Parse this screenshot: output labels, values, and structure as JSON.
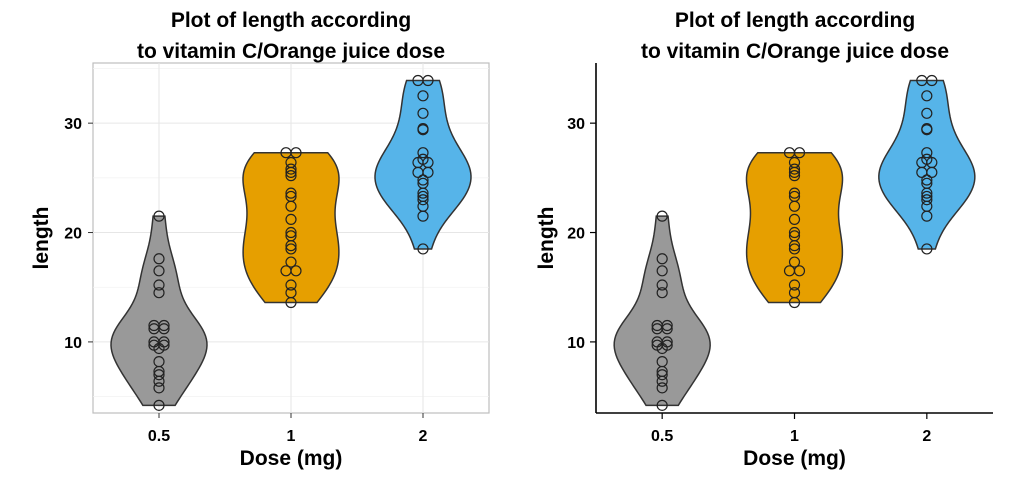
{
  "chart_data": [
    {
      "type": "violin",
      "title": "Plot of length according to vitamin C/Orange juice dose",
      "title_lines": [
        "Plot of length according",
        "to vitamin C/Orange juice dose"
      ],
      "xlabel": "Dose (mg)",
      "ylabel": "length",
      "categories": [
        "0.5",
        "1",
        "2"
      ],
      "ylim": [
        3.5,
        35.5
      ],
      "yticks": [
        10,
        20,
        30
      ],
      "grid": true,
      "panel_style": "grey-border",
      "series": [
        {
          "name": "0.5",
          "color": "#999999",
          "values": [
            4.2,
            5.8,
            6.4,
            7.0,
            7.3,
            8.2,
            9.4,
            9.7,
            9.7,
            10.0,
            10.0,
            11.2,
            11.2,
            11.5,
            11.5,
            14.5,
            15.2,
            16.5,
            17.6,
            21.5
          ],
          "min": 4.2,
          "max": 21.5
        },
        {
          "name": "1",
          "color": "#E69F00",
          "values": [
            13.6,
            14.5,
            15.2,
            16.5,
            16.5,
            17.3,
            18.5,
            18.8,
            19.7,
            20.0,
            21.2,
            22.4,
            23.3,
            23.6,
            25.2,
            25.5,
            25.8,
            26.4,
            27.3,
            27.3
          ],
          "min": 13.6,
          "max": 27.3
        },
        {
          "name": "2",
          "color": "#56B4E9",
          "values": [
            18.5,
            21.5,
            22.4,
            23.0,
            23.3,
            23.6,
            24.5,
            24.8,
            25.5,
            25.5,
            26.4,
            26.4,
            26.7,
            27.3,
            29.4,
            29.5,
            30.9,
            32.5,
            33.9,
            33.9
          ],
          "min": 18.5,
          "max": 33.9
        }
      ]
    },
    {
      "type": "violin",
      "title": "Plot of length according to vitamin C/Orange juice dose",
      "title_lines": [
        "Plot of length according",
        "to vitamin C/Orange juice dose"
      ],
      "xlabel": "Dose (mg)",
      "ylabel": "length",
      "categories": [
        "0.5",
        "1",
        "2"
      ],
      "ylim": [
        3.5,
        35.5
      ],
      "yticks": [
        10,
        20,
        30
      ],
      "grid": false,
      "panel_style": "classic-axes",
      "series": [
        {
          "name": "0.5",
          "color": "#999999",
          "values": [
            4.2,
            5.8,
            6.4,
            7.0,
            7.3,
            8.2,
            9.4,
            9.7,
            9.7,
            10.0,
            10.0,
            11.2,
            11.2,
            11.5,
            11.5,
            14.5,
            15.2,
            16.5,
            17.6,
            21.5
          ],
          "min": 4.2,
          "max": 21.5
        },
        {
          "name": "1",
          "color": "#E69F00",
          "values": [
            13.6,
            14.5,
            15.2,
            16.5,
            16.5,
            17.3,
            18.5,
            18.8,
            19.7,
            20.0,
            21.2,
            22.4,
            23.3,
            23.6,
            25.2,
            25.5,
            25.8,
            26.4,
            27.3,
            27.3
          ],
          "min": 13.6,
          "max": 27.3
        },
        {
          "name": "2",
          "color": "#56B4E9",
          "values": [
            18.5,
            21.5,
            22.4,
            23.0,
            23.3,
            23.6,
            24.5,
            24.8,
            25.5,
            25.5,
            26.4,
            26.4,
            26.7,
            27.3,
            29.4,
            29.5,
            30.9,
            32.5,
            33.9,
            33.9
          ],
          "min": 18.5,
          "max": 33.9
        }
      ]
    }
  ]
}
